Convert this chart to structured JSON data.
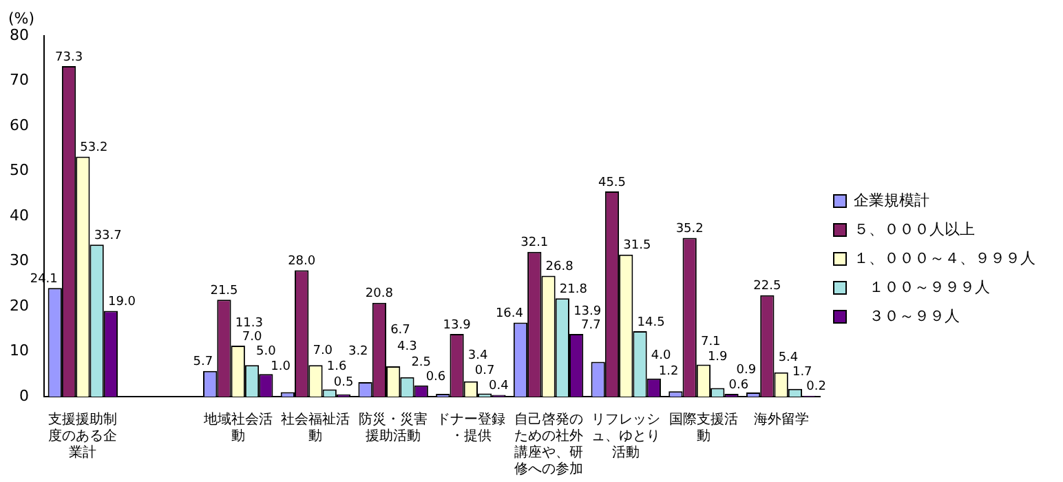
{
  "chart_data": {
    "type": "bar",
    "ylabel": "(%)",
    "categories": [
      "支援援助制度のある企業計",
      null,
      "地域社会活動",
      "社会福祉活動",
      "防災・災害援助活動",
      "ドナー登録・提供",
      "自己啓発のための社外講座や、研修への参加",
      "リフレッシュ、ゆとり活動",
      "国際支援活動",
      "海外留学"
    ],
    "series": [
      {
        "name": "企業規模計",
        "color": "#9999ff",
        "values": [
          24.1,
          null,
          5.7,
          1.0,
          3.2,
          0.6,
          16.4,
          7.7,
          1.2,
          0.9
        ],
        "value_labels": [
          "24.1",
          null,
          "5.7",
          "1.0",
          "3.2",
          "0.6",
          "16.4",
          "7.7",
          "1.2",
          "0.9"
        ]
      },
      {
        "name": "５、０００人以上",
        "color": "#882266",
        "values": [
          73.3,
          null,
          21.5,
          28.0,
          20.8,
          13.9,
          32.1,
          45.5,
          35.2,
          22.5
        ],
        "value_labels": [
          "73.3",
          null,
          "21.5",
          "28.0",
          "20.8",
          "13.9",
          "32.1",
          "45.5",
          "35.2",
          "22.5"
        ]
      },
      {
        "name": "１、０００～４、９９９人",
        "color": "#ffffcc",
        "values": [
          53.2,
          null,
          11.3,
          7.0,
          6.7,
          3.4,
          26.8,
          31.5,
          7.1,
          5.4
        ],
        "value_labels": [
          "53.2",
          null,
          "11.3",
          "7.0",
          "6.7",
          "3.4",
          "26.8",
          "31.5",
          "7.1",
          "5.4"
        ]
      },
      {
        "name": "　１００～９９９人",
        "color": "#a6e3e3",
        "values": [
          33.7,
          null,
          7.0,
          1.6,
          4.3,
          0.7,
          21.8,
          14.5,
          1.9,
          1.7
        ],
        "value_labels": [
          "33.7",
          null,
          "7.0",
          "1.6",
          "4.3",
          "0.7",
          "21.8",
          "14.5",
          "1.9",
          "1.7"
        ]
      },
      {
        "name": "　３０～９９人",
        "color": "#660088",
        "values": [
          19.0,
          null,
          5.0,
          0.5,
          2.5,
          0.4,
          13.9,
          4.0,
          0.6,
          0.2
        ],
        "value_labels": [
          "19.0",
          null,
          "5.0",
          "0.5",
          "2.5",
          "0.4",
          "13.9",
          "4.0",
          "0.6",
          "0.2"
        ]
      }
    ],
    "ylim": [
      0,
      80
    ],
    "yticks": [
      0,
      10,
      20,
      30,
      40,
      50,
      60,
      70,
      80
    ],
    "grid": false,
    "legend": "right"
  }
}
